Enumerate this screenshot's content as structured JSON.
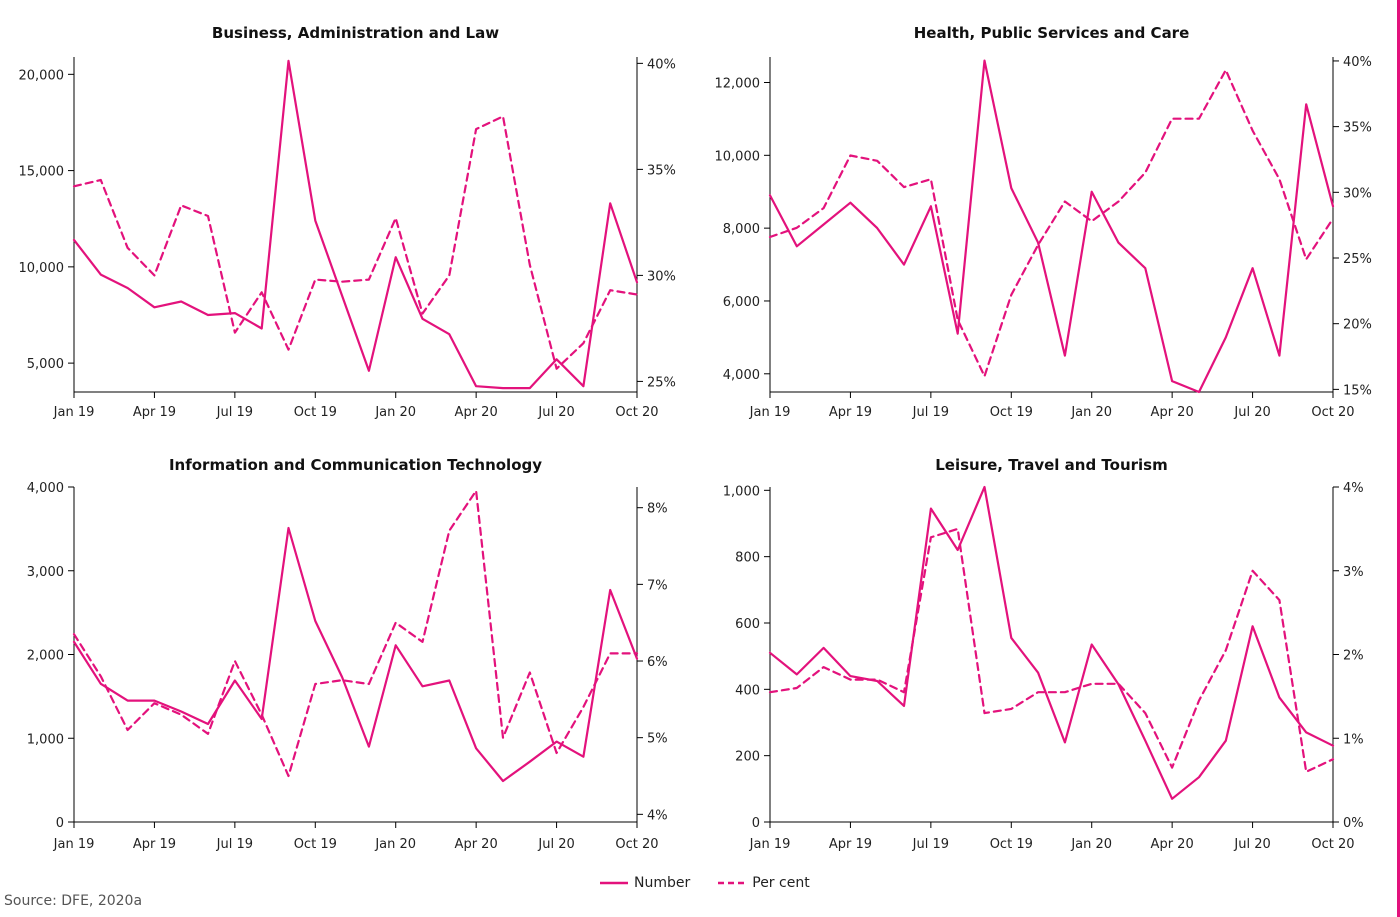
{
  "theme": {
    "line_color": "#e3127c",
    "axis_color": "#000000"
  },
  "legend": {
    "number_label": "Number",
    "percent_label": "Per cent"
  },
  "source": "Source: DFE, 2020a",
  "chart_data": [
    {
      "type": "line",
      "title": "Business, Administration and Law",
      "x": [
        "Jan 19",
        "Feb 19",
        "Mar 19",
        "Apr 19",
        "May 19",
        "Jun 19",
        "Jul 19",
        "Aug 19",
        "Sep 19",
        "Oct 19",
        "Nov 19",
        "Dec 19",
        "Jan 20",
        "Feb 20",
        "Mar 20",
        "Apr 20",
        "May 20",
        "Jun 20",
        "Jul 20",
        "Aug 20",
        "Sep 20",
        "Oct 20"
      ],
      "x_tick_labels": [
        "Jan 19",
        "Apr 19",
        "Jul 19",
        "Oct 19",
        "Jan 20",
        "Apr 20",
        "Jul 20",
        "Oct 20"
      ],
      "y_left": {
        "range": [
          3500,
          20900
        ],
        "ticks": [
          5000,
          10000,
          15000,
          20000
        ],
        "tick_labels": [
          "5,000",
          "10,000",
          "15,000",
          "20,000"
        ]
      },
      "y_right": {
        "range": [
          24.5,
          40.3
        ],
        "ticks": [
          25,
          30,
          35,
          40
        ],
        "tick_labels": [
          "25%",
          "30%",
          "35%",
          "40%"
        ]
      },
      "series": [
        {
          "name": "Number",
          "axis": "left",
          "style": "solid",
          "values": [
            11400,
            9600,
            8900,
            7900,
            8200,
            7500,
            7600,
            6800,
            20700,
            12400,
            8500,
            4600,
            10500,
            7300,
            6500,
            3800,
            3700,
            3700,
            5200,
            3800,
            13300,
            9200
          ]
        },
        {
          "name": "Per cent",
          "axis": "left_dashed",
          "style": "dashed",
          "values": [
            34.2,
            34.5,
            31.3,
            30.0,
            33.3,
            32.8,
            27.3,
            29.2,
            26.5,
            29.8,
            29.7,
            29.8,
            32.7,
            28.2,
            30.0,
            36.9,
            37.5,
            30.5,
            25.6,
            26.8,
            29.3,
            29.1
          ]
        }
      ]
    },
    {
      "type": "line",
      "title": "Health, Public Services and Care",
      "x": [
        "Jan 19",
        "Feb 19",
        "Mar 19",
        "Apr 19",
        "May 19",
        "Jun 19",
        "Jul 19",
        "Aug 19",
        "Sep 19",
        "Oct 19",
        "Nov 19",
        "Dec 19",
        "Jan 20",
        "Feb 20",
        "Mar 20",
        "Apr 20",
        "May 20",
        "Jun 20",
        "Jul 20",
        "Aug 20",
        "Sep 20",
        "Oct 20"
      ],
      "x_tick_labels": [
        "Jan 19",
        "Apr 19",
        "Jul 19",
        "Oct 19",
        "Jan 20",
        "Apr 20",
        "Jul 20",
        "Oct 20"
      ],
      "y_left": {
        "range": [
          3500,
          12700
        ],
        "ticks": [
          4000,
          6000,
          8000,
          10000,
          12000
        ],
        "tick_labels": [
          "4,000",
          "6,000",
          "8,000",
          "10,000",
          "12,000"
        ]
      },
      "y_right": {
        "range": [
          14.8,
          40.3
        ],
        "ticks": [
          15,
          20,
          25,
          30,
          35,
          40
        ],
        "tick_labels": [
          "15%",
          "20%",
          "25%",
          "30%",
          "35%",
          "40%"
        ]
      },
      "series": [
        {
          "name": "Number",
          "axis": "left",
          "style": "solid",
          "values": [
            8900,
            7500,
            8100,
            8700,
            8000,
            7000,
            8600,
            5100,
            12600,
            9100,
            7600,
            4500,
            9000,
            7600,
            6900,
            3800,
            3500,
            5000,
            6900,
            4500,
            11400,
            8600
          ]
        },
        {
          "name": "Per cent",
          "axis": "right",
          "style": "dashed",
          "values": [
            26.6,
            27.3,
            28.8,
            32.8,
            32.4,
            30.4,
            31.0,
            20.3,
            16.0,
            22.2,
            26.0,
            29.3,
            27.8,
            29.3,
            31.5,
            35.6,
            35.6,
            39.3,
            34.7,
            31.0,
            24.9,
            28.0
          ]
        }
      ]
    },
    {
      "type": "line",
      "title": "Information and Communication Technology",
      "x": [
        "Jan 19",
        "Feb 19",
        "Mar 19",
        "Apr 19",
        "May 19",
        "Jun 19",
        "Jul 19",
        "Aug 19",
        "Sep 19",
        "Oct 19",
        "Nov 19",
        "Dec 19",
        "Jan 20",
        "Feb 20",
        "Mar 20",
        "Apr 20",
        "May 20",
        "Jun 20",
        "Jul 20",
        "Aug 20",
        "Sep 20",
        "Oct 20"
      ],
      "x_tick_labels": [
        "Jan 19",
        "Apr 19",
        "Jul 19",
        "Oct 19",
        "Jan 20",
        "Apr 20",
        "Jul 20",
        "Oct 20"
      ],
      "y_left": {
        "range": [
          0,
          4000
        ],
        "ticks": [
          0,
          1000,
          2000,
          3000,
          4000
        ],
        "tick_labels": [
          "0",
          "1,000",
          "2,000",
          "3,000",
          "4,000"
        ]
      },
      "y_right": {
        "range": [
          3.9,
          8.27
        ],
        "ticks": [
          4,
          5,
          6,
          7,
          8
        ],
        "tick_labels": [
          "4%",
          "5%",
          "6%",
          "7%",
          "8%"
        ]
      },
      "series": [
        {
          "name": "Number",
          "axis": "left",
          "style": "solid",
          "values": [
            2150,
            1650,
            1450,
            1450,
            1320,
            1170,
            1690,
            1230,
            3510,
            2400,
            1730,
            900,
            2110,
            1620,
            1690,
            880,
            490,
            720,
            960,
            780,
            2770,
            1950
          ]
        },
        {
          "name": "Per cent",
          "axis": "right",
          "style": "dashed",
          "values": [
            6.35,
            5.8,
            5.1,
            5.45,
            5.3,
            5.05,
            6.0,
            5.3,
            4.5,
            5.7,
            5.75,
            5.7,
            6.5,
            6.25,
            7.7,
            8.22,
            5.0,
            5.85,
            4.8,
            5.4,
            6.1,
            6.1
          ]
        }
      ]
    },
    {
      "type": "line",
      "title": "Leisure, Travel and Tourism",
      "x": [
        "Jan 19",
        "Feb 19",
        "Mar 19",
        "Apr 19",
        "May 19",
        "Jun 19",
        "Jul 19",
        "Aug 19",
        "Sep 19",
        "Oct 19",
        "Nov 19",
        "Dec 19",
        "Jan 20",
        "Feb 20",
        "Mar 20",
        "Apr 20",
        "May 20",
        "Jun 20",
        "Jul 20",
        "Aug 20",
        "Sep 20",
        "Oct 20"
      ],
      "x_tick_labels": [
        "Jan 19",
        "Apr 19",
        "Jul 19",
        "Oct 19",
        "Jan 20",
        "Apr 20",
        "Jul 20",
        "Oct 20"
      ],
      "y_left": {
        "range": [
          0,
          1010
        ],
        "ticks": [
          0,
          200,
          400,
          600,
          800,
          1000
        ],
        "tick_labels": [
          "0",
          "200",
          "400",
          "600",
          "800",
          "1,000"
        ]
      },
      "y_right": {
        "range": [
          0,
          4.0
        ],
        "ticks": [
          0,
          1,
          2,
          3,
          4
        ],
        "tick_labels": [
          "0%",
          "1%",
          "2%",
          "3%",
          "4%"
        ]
      },
      "series": [
        {
          "name": "Number",
          "axis": "left",
          "style": "solid",
          "values": [
            510,
            445,
            525,
            440,
            425,
            350,
            945,
            820,
            1010,
            555,
            450,
            240,
            535,
            415,
            245,
            70,
            135,
            245,
            590,
            375,
            270,
            230
          ]
        },
        {
          "name": "Per cent",
          "axis": "right",
          "style": "dashed",
          "values": [
            1.55,
            1.6,
            1.85,
            1.7,
            1.7,
            1.55,
            3.4,
            3.5,
            1.3,
            1.35,
            1.55,
            1.55,
            1.65,
            1.65,
            1.3,
            0.65,
            1.45,
            2.05,
            3.0,
            2.65,
            0.6,
            0.75
          ]
        }
      ]
    }
  ]
}
